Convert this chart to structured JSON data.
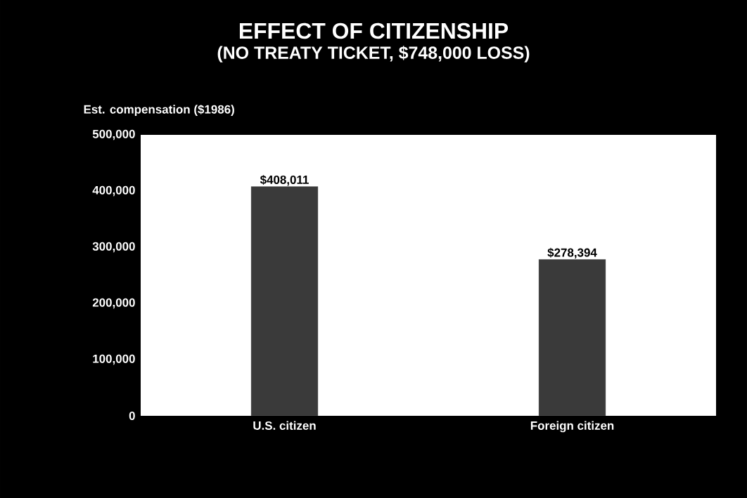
{
  "chart_data": {
    "type": "bar",
    "title": "EFFECT OF CITIZENSHIP",
    "subtitle": "(NO TREATY TICKET, $748,000 LOSS)",
    "ylabel": "Est. compensation ($1986)",
    "categories": [
      "U.S. citizen",
      "Foreign citizen"
    ],
    "values": [
      408011,
      278394
    ],
    "value_labels": [
      "$408,011",
      "$278,394"
    ],
    "color": "#3a3a3a",
    "ylim": [
      0,
      500000
    ],
    "yticks": [
      {
        "value": 0,
        "label": "0"
      },
      {
        "value": 100000,
        "label": "100,000"
      },
      {
        "value": 200000,
        "label": "200,000"
      },
      {
        "value": 300000,
        "label": "300,000"
      },
      {
        "value": 400000,
        "label": "400,000"
      },
      {
        "value": 500000,
        "label": "500,000"
      }
    ],
    "orientation": "vertical"
  }
}
